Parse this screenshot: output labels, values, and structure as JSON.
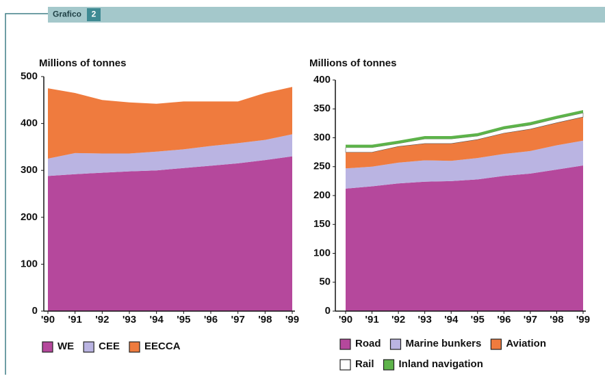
{
  "header": {
    "label": "Grafico",
    "number": 2
  },
  "chart_data": [
    {
      "type": "area",
      "stacked": true,
      "y_label": "Millions of tonnes",
      "categories": [
        "'90",
        "'91",
        "'92",
        "'93",
        "'94",
        "'95",
        "'96",
        "'97",
        "'98",
        "'99"
      ],
      "series": [
        {
          "name": "WE",
          "color": "#b5489c",
          "values": [
            288,
            292,
            295,
            298,
            300,
            305,
            310,
            315,
            322,
            330
          ]
        },
        {
          "name": "CEE",
          "color": "#bab4e2",
          "values": [
            37,
            45,
            41,
            38,
            40,
            40,
            42,
            43,
            43,
            47
          ]
        },
        {
          "name": "EECCA",
          "color": "#ef7b3e",
          "values": [
            150,
            128,
            114,
            109,
            102,
            102,
            95,
            89,
            100,
            101
          ]
        }
      ],
      "ylim": [
        0,
        500
      ],
      "yticks": [
        0,
        100,
        200,
        300,
        400,
        500
      ]
    },
    {
      "type": "area",
      "stacked": true,
      "y_label": "Millions of tonnes",
      "categories": [
        "'90",
        "'91",
        "'92",
        "'93",
        "'94",
        "'95",
        "'96",
        "'97",
        "'98",
        "'99"
      ],
      "series": [
        {
          "name": "Road",
          "color": "#b5489c",
          "values": [
            212,
            216,
            221,
            224,
            225,
            228,
            234,
            238,
            245,
            252
          ]
        },
        {
          "name": "Marine bunkers",
          "color": "#bab4e2",
          "values": [
            35,
            34,
            36,
            37,
            35,
            37,
            38,
            39,
            42,
            43
          ]
        },
        {
          "name": "Aviation",
          "color": "#ef7b3e",
          "values": [
            28,
            25,
            28,
            29,
            30,
            32,
            36,
            38,
            39,
            41
          ]
        },
        {
          "name": "Rail",
          "color": "#ffffff",
          "values": [
            8,
            8,
            5,
            8,
            8,
            6,
            7,
            7,
            7,
            7
          ]
        },
        {
          "name": "Inland navigation",
          "color": "#5db34a",
          "values": [
            5,
            5,
            5,
            5,
            5,
            5,
            5,
            5,
            5,
            5
          ]
        }
      ],
      "ylim": [
        0,
        400
      ],
      "yticks": [
        0,
        50,
        100,
        150,
        200,
        250,
        300,
        350,
        400
      ]
    }
  ]
}
